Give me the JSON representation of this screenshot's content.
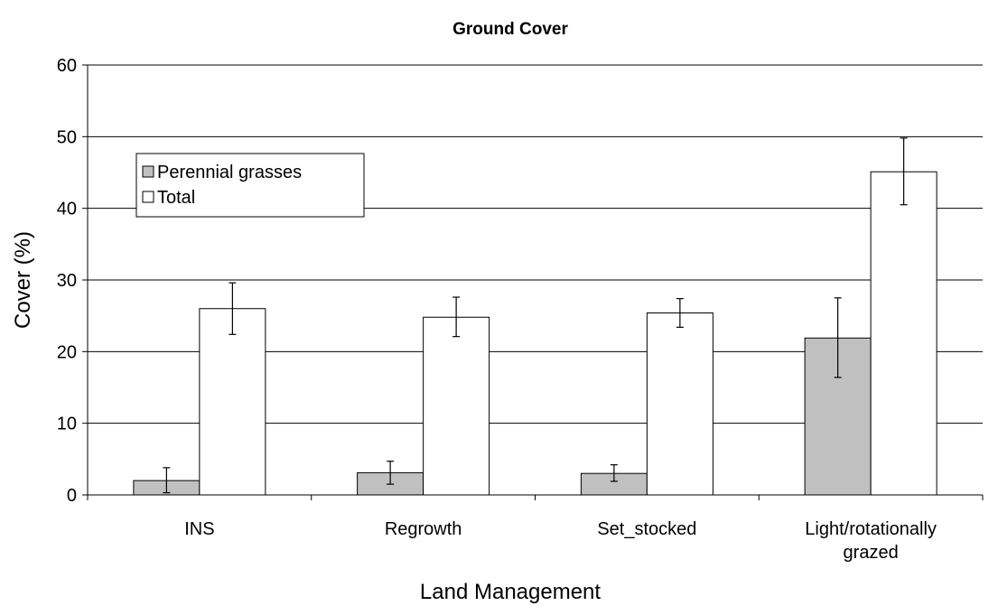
{
  "chart_data": {
    "type": "bar",
    "title": "Ground Cover",
    "xlabel": "Land Management",
    "ylabel": "Cover (%)",
    "ylim": [
      0,
      60
    ],
    "yticks": [
      0,
      10,
      20,
      30,
      40,
      50,
      60
    ],
    "grid": true,
    "legend_position": "upper-left",
    "categories": [
      [
        "INS"
      ],
      [
        "Regrowth"
      ],
      [
        "Set_stocked"
      ],
      [
        "Light/rotationally",
        "grazed"
      ]
    ],
    "series": [
      {
        "name": "Perennial grasses",
        "color": "#c0c0c0",
        "values": [
          2.0,
          3.1,
          3.0,
          21.9
        ],
        "error_low": [
          0.3,
          1.5,
          1.9,
          16.4
        ],
        "error_high": [
          3.8,
          4.7,
          4.2,
          27.5
        ]
      },
      {
        "name": "Total",
        "color": "#ffffff",
        "values": [
          26.0,
          24.8,
          25.4,
          45.1
        ],
        "error_low": [
          22.4,
          22.1,
          23.4,
          40.5
        ],
        "error_high": [
          29.6,
          27.6,
          27.4,
          49.8
        ]
      }
    ]
  }
}
